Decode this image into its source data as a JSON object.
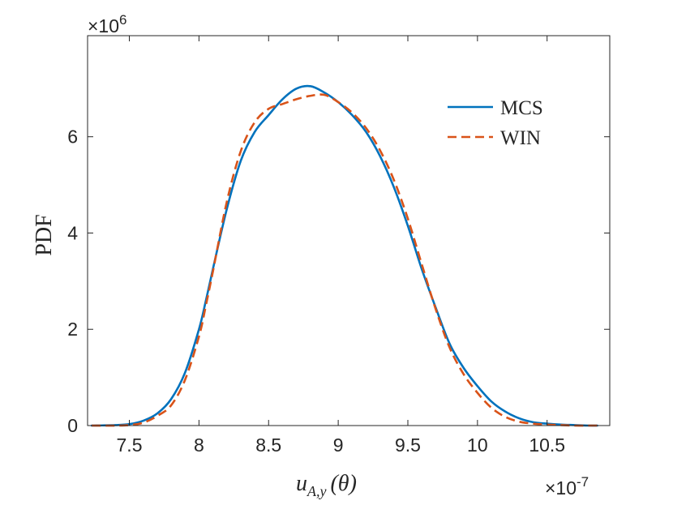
{
  "chart_data": {
    "type": "line",
    "title": "",
    "xlabel": "u_{A,y}(θ)",
    "xlabel_parts": {
      "base": "u",
      "sub": "A,y",
      "arg": "(θ)"
    },
    "ylabel": "PDF",
    "x_multiplier": {
      "times": "×10",
      "exp": "-7"
    },
    "y_multiplier": {
      "times": "×10",
      "exp": "6"
    },
    "xlim": [
      7.2,
      10.95
    ],
    "ylim": [
      0,
      8.1
    ],
    "xticks": [
      7.5,
      8,
      8.5,
      9,
      9.5,
      10,
      10.5
    ],
    "xtick_labels": [
      "7.5",
      "8",
      "8.5",
      "9",
      "9.5",
      "10",
      "10.5"
    ],
    "yticks": [
      0,
      2,
      4,
      6
    ],
    "ytick_labels": [
      "0",
      "2",
      "4",
      "6"
    ],
    "grid": false,
    "legend_position": "top-right",
    "series": [
      {
        "name": "MCS",
        "style": "solid",
        "color": "#0072BD",
        "x": [
          7.23,
          7.4,
          7.5,
          7.6,
          7.7,
          7.8,
          7.9,
          8.0,
          8.05,
          8.1,
          8.2,
          8.3,
          8.4,
          8.5,
          8.6,
          8.7,
          8.8,
          8.9,
          9.0,
          9.1,
          9.2,
          9.3,
          9.4,
          9.5,
          9.6,
          9.7,
          9.8,
          9.9,
          10.0,
          10.1,
          10.2,
          10.3,
          10.4,
          10.5,
          10.6,
          10.7,
          10.8,
          10.86
        ],
        "values": [
          0.0,
          0.01,
          0.03,
          0.1,
          0.25,
          0.55,
          1.1,
          2.0,
          2.6,
          3.25,
          4.5,
          5.5,
          6.1,
          6.45,
          6.78,
          7.0,
          7.05,
          6.92,
          6.72,
          6.45,
          6.1,
          5.6,
          4.95,
          4.15,
          3.25,
          2.45,
          1.7,
          1.2,
          0.82,
          0.5,
          0.29,
          0.15,
          0.07,
          0.04,
          0.02,
          0.01,
          0.0,
          0.0
        ]
      },
      {
        "name": "WIN",
        "style": "dashed",
        "color": "#D95319",
        "x": [
          7.23,
          7.4,
          7.5,
          7.6,
          7.7,
          7.8,
          7.9,
          8.0,
          8.05,
          8.1,
          8.2,
          8.3,
          8.4,
          8.5,
          8.6,
          8.7,
          8.8,
          8.9,
          9.0,
          9.1,
          9.2,
          9.3,
          9.4,
          9.5,
          9.6,
          9.7,
          9.8,
          9.9,
          10.0,
          10.1,
          10.2,
          10.3,
          10.4,
          10.5,
          10.6,
          10.7,
          10.8,
          10.86
        ],
        "values": [
          0.0,
          0.0,
          0.01,
          0.06,
          0.2,
          0.42,
          0.95,
          1.85,
          2.5,
          3.2,
          4.65,
          5.7,
          6.3,
          6.58,
          6.68,
          6.78,
          6.85,
          6.87,
          6.72,
          6.5,
          6.18,
          5.72,
          5.1,
          4.3,
          3.35,
          2.42,
          1.62,
          1.07,
          0.68,
          0.37,
          0.18,
          0.08,
          0.04,
          0.02,
          0.01,
          0.0,
          0.0,
          0.0
        ]
      }
    ]
  }
}
